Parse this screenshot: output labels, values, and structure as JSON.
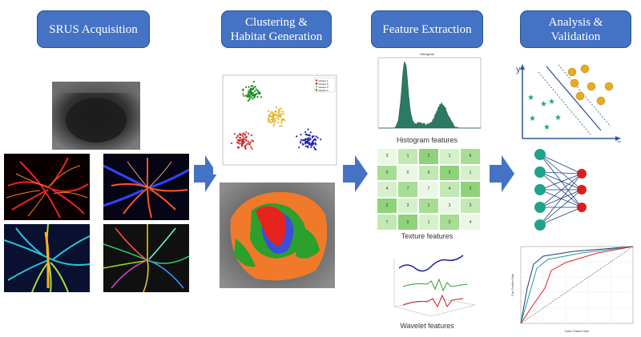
{
  "stages": [
    {
      "title": "SRUS Acquisition"
    },
    {
      "title": "Clustering &\nHabitat Generation"
    },
    {
      "title": "Feature Extraction"
    },
    {
      "title": "Analysis &\nValidation"
    }
  ],
  "histogram": {
    "title": "Histogram",
    "caption": "Histogram features"
  },
  "texture": {
    "caption": "Texture features",
    "grid": [
      [
        "3",
        "1",
        "2",
        "1",
        "6"
      ],
      [
        "0",
        "0",
        "6",
        "2",
        "1"
      ],
      [
        "4",
        "7",
        "7",
        "4",
        "2"
      ],
      [
        "2",
        "3",
        "1",
        "3",
        "3"
      ],
      [
        "7",
        "0",
        "1",
        "2",
        "4"
      ]
    ]
  },
  "wavelet": {
    "caption": "Wavelet features"
  },
  "scatter": {
    "legend": [
      "Cluster 1",
      "Cluster 2",
      "Cluster 3",
      "Cluster 4"
    ],
    "colors": [
      "#d62728",
      "#1f1fb4",
      "#e6b422",
      "#1f8a1f"
    ]
  },
  "svm": {
    "y_label": "y",
    "x_label": "x"
  },
  "roc": {
    "x_axis_title": "False Positive Rate",
    "y_axis_title": "True Positive Rate"
  },
  "colors": {
    "stage": "#4472c4",
    "arrow": "#4472c4"
  }
}
